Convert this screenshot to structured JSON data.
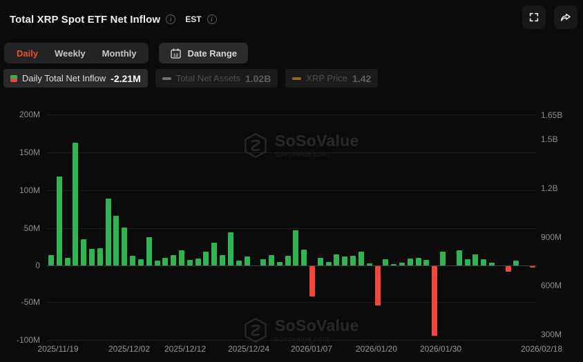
{
  "header": {
    "title": "Total XRP Spot ETF Net Inflow",
    "timezone": "EST"
  },
  "toolbar": {
    "tabs": [
      {
        "label": "Daily",
        "active": true
      },
      {
        "label": "Weekly",
        "active": false
      },
      {
        "label": "Monthly",
        "active": false
      }
    ],
    "date_range_label": "Date Range",
    "calendar_day": "12"
  },
  "legend": {
    "items": [
      {
        "label": "Daily Total Net Inflow",
        "value": "-2.21M",
        "active": true
      },
      {
        "label": "Total Net Assets",
        "value": "1.02B",
        "active": false,
        "icon_color": "#6f6f6f"
      },
      {
        "label": "XRP Price",
        "value": "1.42",
        "active": false,
        "icon_color": "#8a6a20"
      }
    ]
  },
  "watermark": {
    "name": "SoSoValue",
    "domain": "sosovalue.com"
  },
  "chart_data": {
    "type": "bar",
    "title": "Total XRP Spot ETF Net Inflow",
    "series_name": "Daily Total Net Inflow (USD)",
    "unit": "M",
    "values": [
      14,
      118,
      10,
      163,
      35,
      22,
      23,
      89,
      66,
      50,
      13,
      8,
      37,
      6,
      10,
      14,
      20,
      7,
      9,
      18,
      30,
      14,
      44,
      6,
      12,
      0,
      8,
      14,
      5,
      13,
      47,
      21,
      -40,
      10,
      5,
      15,
      12,
      13,
      18,
      3,
      -52,
      8,
      2,
      4,
      9,
      10,
      7,
      -92,
      18,
      0,
      20,
      8,
      15,
      8,
      4,
      0,
      -7,
      6,
      0,
      -2.21
    ],
    "last_value_label": "-2.21M",
    "left_axis": {
      "ticks": [
        "200M",
        "150M",
        "100M",
        "50M",
        "0",
        "-50M",
        "-100M"
      ],
      "range_millions": [
        -100,
        200
      ]
    },
    "right_axis": {
      "ticks": [
        "1.65B",
        "1.5B",
        "1.2B",
        "900M",
        "600M",
        "300M"
      ]
    },
    "x_ticks": [
      "2025/11/19",
      "2025/12/02",
      "2025/12/12",
      "2025/12/24",
      "2026/01/07",
      "2026/01/20",
      "2026/01/30",
      "2026/02/18"
    ],
    "colors": {
      "positive": "#2eb551",
      "negative": "#f5463d"
    },
    "grid": true,
    "legend_position": "top"
  }
}
